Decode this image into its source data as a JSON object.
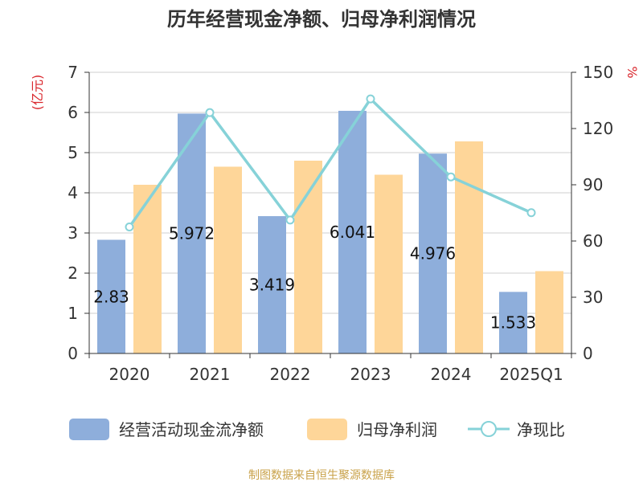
{
  "title": "历年经营现金净额、归母净利润情况",
  "left_unit": "(亿元)",
  "right_unit": "%",
  "source": "制图数据来自恒生聚源数据库",
  "colors": {
    "cash_flow": "#8eaedb",
    "net_profit": "#fed699",
    "ratio": "#86d2d8",
    "source_text": "#c9a24a",
    "unit_text": "#d9262c"
  },
  "chart_data": {
    "type": "bar",
    "categories": [
      "2020",
      "2021",
      "2022",
      "2023",
      "2024",
      "2025Q1"
    ],
    "series": [
      {
        "name": "经营活动现金流净额",
        "kind": "bar",
        "axis": "left",
        "values": [
          2.83,
          5.972,
          3.419,
          6.041,
          4.976,
          1.533
        ],
        "labels": [
          "2.83",
          "5.972",
          "3.419",
          "6.041",
          "4.976",
          "1.533"
        ]
      },
      {
        "name": "归母净利润",
        "kind": "bar",
        "axis": "left",
        "values": [
          4.2,
          4.65,
          4.8,
          4.45,
          5.28,
          2.05
        ]
      },
      {
        "name": "净现比",
        "kind": "line",
        "axis": "right",
        "values": [
          67.5,
          128.5,
          71.2,
          135.8,
          94.2,
          75.1
        ]
      }
    ],
    "left_axis": {
      "ticks": [
        "0",
        "1",
        "2",
        "3",
        "4",
        "5",
        "6",
        "7"
      ],
      "ylim": [
        0,
        7
      ]
    },
    "right_axis": {
      "ticks": [
        "0",
        "30",
        "60",
        "90",
        "120",
        "150"
      ],
      "ylim": [
        0,
        150
      ]
    },
    "grid": true,
    "legend_position": "bottom"
  }
}
